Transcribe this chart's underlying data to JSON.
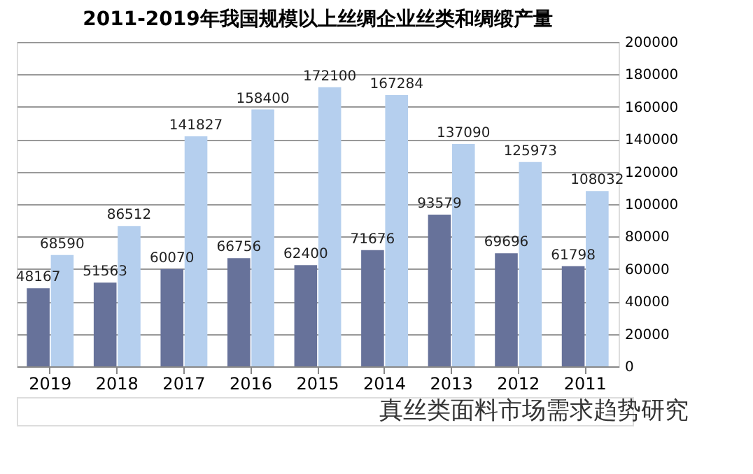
{
  "chart_data": {
    "type": "bar",
    "title": "2011-2019年我国规模以上丝绸企业丝类和绸缎产量",
    "categories": [
      "2019",
      "2018",
      "2017",
      "2016",
      "2015",
      "2014",
      "2013",
      "2012",
      "2011"
    ],
    "series": [
      {
        "color": "#67729a",
        "values": [
          48167,
          51563,
          60070,
          66756,
          62400,
          71676,
          93579,
          69696,
          61798
        ]
      },
      {
        "color": "#b5cfee",
        "values": [
          68590,
          86512,
          141827,
          158400,
          172100,
          167284,
          137090,
          125973,
          108032
        ]
      }
    ],
    "ylim": [
      0,
      200000
    ],
    "yticks": [
      0,
      20000,
      40000,
      60000,
      80000,
      100000,
      120000,
      140000,
      160000,
      180000,
      200000
    ],
    "grid": "y",
    "data_labels": true,
    "annotations": [
      "真丝类面料市场需求趋势研究"
    ]
  }
}
